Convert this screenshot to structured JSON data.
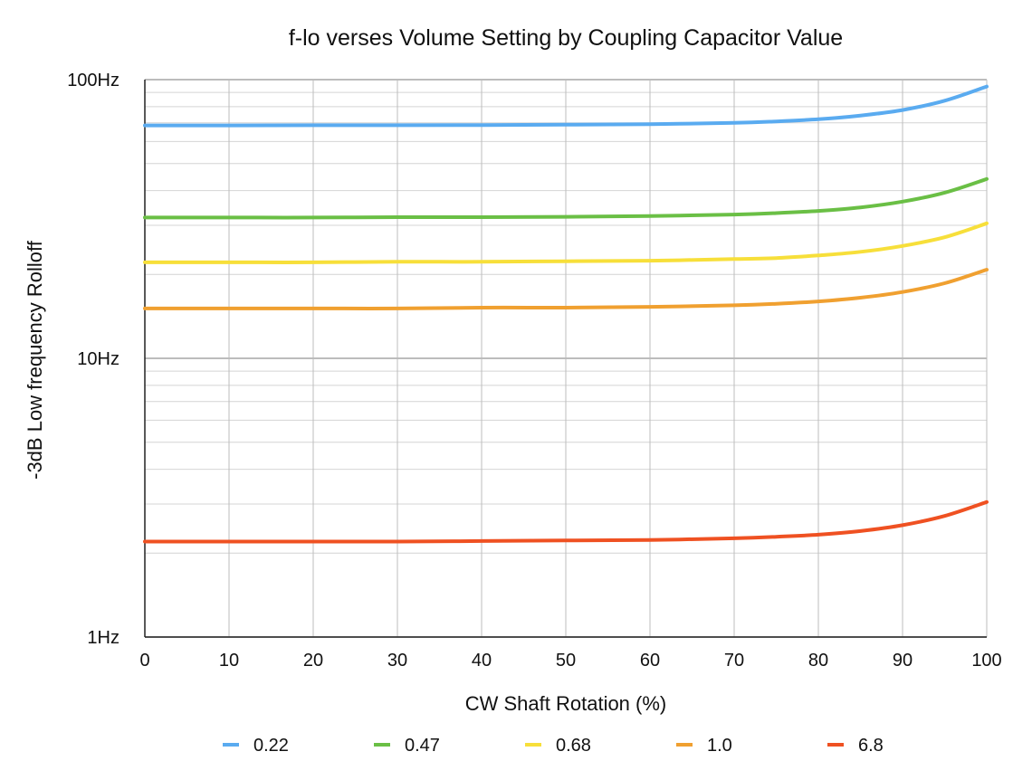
{
  "chart_data": {
    "type": "line",
    "title": "f-lo verses Volume Setting by Coupling Capacitor Value",
    "xlabel": "CW Shaft Rotation (%)",
    "ylabel": "-3dB Low frequency Rolloff",
    "xlim": [
      0,
      100
    ],
    "ylim": [
      1,
      100
    ],
    "yscale": "log",
    "grid": true,
    "legend_position": "bottom",
    "x_ticks": [
      "0",
      "10",
      "20",
      "30",
      "40",
      "50",
      "60",
      "70",
      "80",
      "90",
      "100"
    ],
    "y_ticks": [
      {
        "value": 1,
        "label": "1Hz"
      },
      {
        "value": 10,
        "label": "10Hz"
      },
      {
        "value": 100,
        "label": "100Hz"
      }
    ],
    "x": [
      0,
      10,
      20,
      30,
      40,
      50,
      60,
      70,
      75,
      80,
      85,
      90,
      95,
      100
    ],
    "series": [
      {
        "name": "0.22",
        "color": "#5aabf0",
        "values": [
          68.5,
          68.5,
          68.6,
          68.6,
          68.7,
          68.9,
          69.2,
          70.0,
          70.8,
          72.1,
          74.3,
          77.8,
          84.0,
          94.5
        ]
      },
      {
        "name": "0.47",
        "color": "#6abf45",
        "values": [
          32.0,
          32.0,
          32.0,
          32.1,
          32.1,
          32.2,
          32.4,
          32.8,
          33.2,
          33.8,
          34.8,
          36.5,
          39.3,
          44.0
        ]
      },
      {
        "name": "0.68",
        "color": "#f7df3a",
        "values": [
          22.1,
          22.1,
          22.1,
          22.2,
          22.2,
          22.3,
          22.4,
          22.7,
          22.9,
          23.4,
          24.1,
          25.3,
          27.2,
          30.5
        ]
      },
      {
        "name": "1.0",
        "color": "#f0a030",
        "values": [
          15.1,
          15.1,
          15.1,
          15.1,
          15.2,
          15.2,
          15.3,
          15.5,
          15.7,
          16.0,
          16.5,
          17.3,
          18.6,
          20.8
        ]
      },
      {
        "name": "6.8",
        "color": "#ef5122",
        "values": [
          2.2,
          2.2,
          2.2,
          2.2,
          2.21,
          2.22,
          2.23,
          2.26,
          2.29,
          2.33,
          2.4,
          2.52,
          2.72,
          3.05
        ]
      }
    ]
  }
}
